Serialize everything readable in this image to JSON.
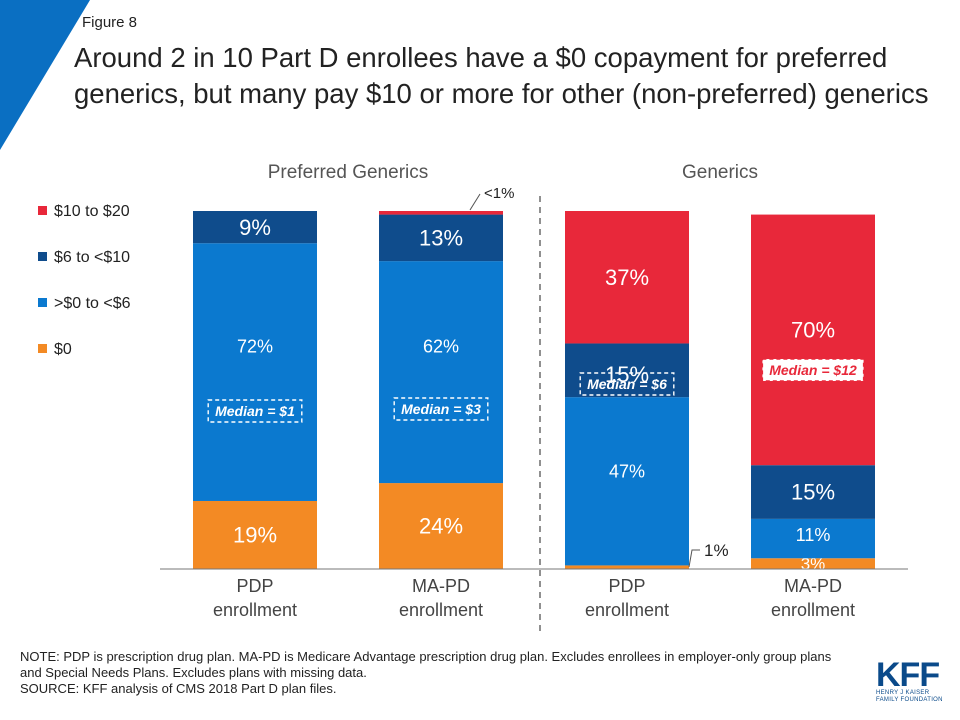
{
  "header": {
    "figure_label": "Figure 8",
    "title": "Around 2 in 10 Part D enrollees have a $0 copayment for preferred generics, but many pay $10 or more for other (non-preferred) generics"
  },
  "colors": {
    "corner_accent": "#0a6fc2",
    "ten_to_twenty": "#e8283a",
    "six_to_ten": "#0f4c8c",
    "zero_to_six": "#0b79cf",
    "zero": "#f38a24"
  },
  "chart_data": {
    "type": "bar",
    "stacked": true,
    "groups": [
      {
        "label": "Preferred Generics",
        "categories": [
          "PDP enrollment",
          "MA-PD enrollment"
        ]
      },
      {
        "label": "Generics",
        "categories": [
          "PDP enrollment",
          "MA-PD enrollment"
        ]
      }
    ],
    "categories": [
      "PDP enrollment",
      "MA-PD enrollment",
      "PDP enrollment",
      "MA-PD enrollment"
    ],
    "series": [
      {
        "name": "$0",
        "color": "#f38a24",
        "values": [
          19,
          24,
          1,
          3
        ],
        "labels": [
          "19%",
          "24%",
          "1%",
          "3%"
        ]
      },
      {
        "name": ">$0 to <$6",
        "color": "#0b79cf",
        "values": [
          72,
          62,
          47,
          11
        ],
        "labels": [
          "72%",
          "62%",
          "47%",
          "11%"
        ]
      },
      {
        "name": "$6 to <$10",
        "color": "#0f4c8c",
        "values": [
          9,
          13,
          15,
          15
        ],
        "labels": [
          "9%",
          "13%",
          "15%",
          "15%"
        ]
      },
      {
        "name": "$10 to $20",
        "color": "#e8283a",
        "values": [
          0,
          1,
          37,
          70
        ],
        "labels": [
          "",
          "<1%",
          "37%",
          "70%"
        ]
      }
    ],
    "medians": [
      "Median = $1",
      "Median = $3",
      "Median = $6",
      "Median = $12"
    ],
    "legend": [
      "$10 to $20",
      "$6 to <$10",
      ">$0 to <$6",
      "$0"
    ],
    "legend_placement": "left",
    "ylim": [
      0,
      100
    ],
    "grid": false,
    "xlabel": "",
    "ylabel": ""
  },
  "footer": {
    "note": "NOTE: PDP is prescription drug plan. MA-PD is Medicare Advantage prescription drug plan. Excludes enrollees in employer-only group plans and Special Needs Plans. Excludes plans with missing data.",
    "source": "SOURCE: KFF analysis of CMS 2018 Part D plan files.",
    "logo_text": "KFF",
    "logo_subtext": "HENRY J KAISER FAMILY FOUNDATION"
  }
}
